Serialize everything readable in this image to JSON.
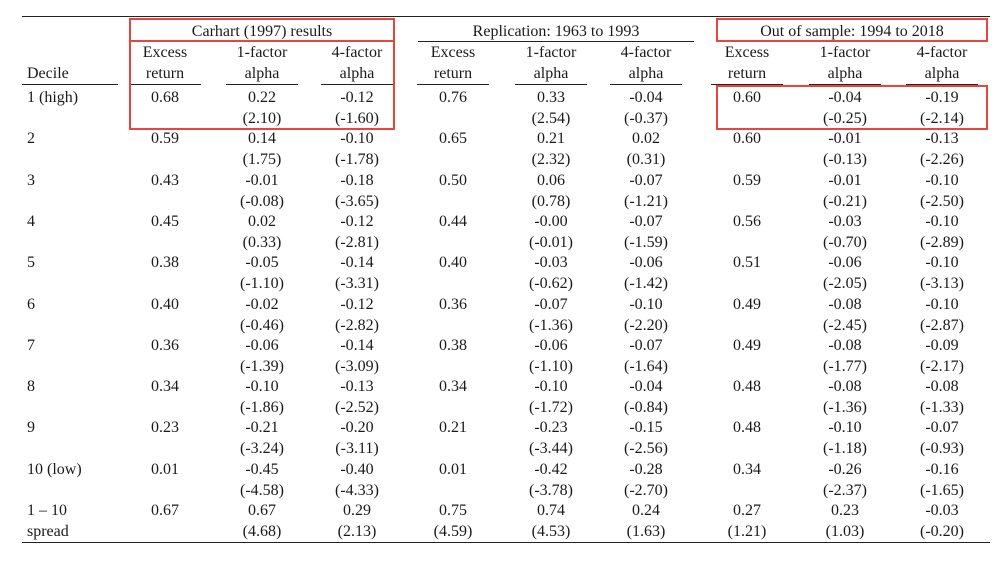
{
  "groups": [
    {
      "title": "Carhart (1997) results"
    },
    {
      "title": "Replication: 1963 to 1993"
    },
    {
      "title": "Out of sample: 1994 to 2018"
    }
  ],
  "decile_header": "Decile",
  "column_headers": [
    {
      "line1": "Excess",
      "line2": "return"
    },
    {
      "line1": "1-factor",
      "line2": "alpha"
    },
    {
      "line1": "4-factor",
      "line2": "alpha"
    }
  ],
  "rows": [
    {
      "label": [
        "1 (high)",
        ""
      ],
      "values": [
        [
          "0.68",
          ""
        ],
        [
          "0.22",
          "(2.10)"
        ],
        [
          "-0.12",
          "(-1.60)"
        ],
        [
          "0.76",
          ""
        ],
        [
          "0.33",
          "(2.54)"
        ],
        [
          "-0.04",
          "(-0.37)"
        ],
        [
          "0.60",
          ""
        ],
        [
          "-0.04",
          "(-0.25)"
        ],
        [
          "-0.19",
          "(-2.14)"
        ]
      ]
    },
    {
      "label": [
        "2",
        ""
      ],
      "values": [
        [
          "0.59",
          ""
        ],
        [
          "0.14",
          "(1.75)"
        ],
        [
          "-0.10",
          "(-1.78)"
        ],
        [
          "0.65",
          ""
        ],
        [
          "0.21",
          "(2.32)"
        ],
        [
          "0.02",
          "(0.31)"
        ],
        [
          "0.60",
          ""
        ],
        [
          "-0.01",
          "(-0.13)"
        ],
        [
          "-0.13",
          "(-2.26)"
        ]
      ]
    },
    {
      "label": [
        "3",
        ""
      ],
      "values": [
        [
          "0.43",
          ""
        ],
        [
          "-0.01",
          "(-0.08)"
        ],
        [
          "-0.18",
          "(-3.65)"
        ],
        [
          "0.50",
          ""
        ],
        [
          "0.06",
          "(0.78)"
        ],
        [
          "-0.07",
          "(-1.21)"
        ],
        [
          "0.59",
          ""
        ],
        [
          "-0.01",
          "(-0.21)"
        ],
        [
          "-0.10",
          "(-2.50)"
        ]
      ]
    },
    {
      "label": [
        "4",
        ""
      ],
      "values": [
        [
          "0.45",
          ""
        ],
        [
          "0.02",
          "(0.33)"
        ],
        [
          "-0.12",
          "(-2.81)"
        ],
        [
          "0.44",
          ""
        ],
        [
          "-0.00",
          "(-0.01)"
        ],
        [
          "-0.07",
          "(-1.59)"
        ],
        [
          "0.56",
          ""
        ],
        [
          "-0.03",
          "(-0.70)"
        ],
        [
          "-0.10",
          "(-2.89)"
        ]
      ]
    },
    {
      "label": [
        "5",
        ""
      ],
      "values": [
        [
          "0.38",
          ""
        ],
        [
          "-0.05",
          "(-1.10)"
        ],
        [
          "-0.14",
          "(-3.31)"
        ],
        [
          "0.40",
          ""
        ],
        [
          "-0.03",
          "(-0.62)"
        ],
        [
          "-0.06",
          "(-1.42)"
        ],
        [
          "0.51",
          ""
        ],
        [
          "-0.06",
          "(-2.05)"
        ],
        [
          "-0.10",
          "(-3.13)"
        ]
      ]
    },
    {
      "label": [
        "6",
        ""
      ],
      "values": [
        [
          "0.40",
          ""
        ],
        [
          "-0.02",
          "(-0.46)"
        ],
        [
          "-0.12",
          "(-2.82)"
        ],
        [
          "0.36",
          ""
        ],
        [
          "-0.07",
          "(-1.36)"
        ],
        [
          "-0.10",
          "(-2.20)"
        ],
        [
          "0.49",
          ""
        ],
        [
          "-0.08",
          "(-2.45)"
        ],
        [
          "-0.10",
          "(-2.87)"
        ]
      ]
    },
    {
      "label": [
        "7",
        ""
      ],
      "values": [
        [
          "0.36",
          ""
        ],
        [
          "-0.06",
          "(-1.39)"
        ],
        [
          "-0.14",
          "(-3.09)"
        ],
        [
          "0.38",
          ""
        ],
        [
          "-0.06",
          "(-1.10)"
        ],
        [
          "-0.07",
          "(-1.64)"
        ],
        [
          "0.49",
          ""
        ],
        [
          "-0.08",
          "(-1.77)"
        ],
        [
          "-0.09",
          "(-2.17)"
        ]
      ]
    },
    {
      "label": [
        "8",
        ""
      ],
      "values": [
        [
          "0.34",
          ""
        ],
        [
          "-0.10",
          "(-1.86)"
        ],
        [
          "-0.13",
          "(-2.52)"
        ],
        [
          "0.34",
          ""
        ],
        [
          "-0.10",
          "(-1.72)"
        ],
        [
          "-0.04",
          "(-0.84)"
        ],
        [
          "0.48",
          ""
        ],
        [
          "-0.08",
          "(-1.36)"
        ],
        [
          "-0.08",
          "(-1.33)"
        ]
      ]
    },
    {
      "label": [
        "9",
        ""
      ],
      "values": [
        [
          "0.23",
          ""
        ],
        [
          "-0.21",
          "(-3.24)"
        ],
        [
          "-0.20",
          "(-3.11)"
        ],
        [
          "0.21",
          ""
        ],
        [
          "-0.23",
          "(-3.44)"
        ],
        [
          "-0.15",
          "(-2.56)"
        ],
        [
          "0.48",
          ""
        ],
        [
          "-0.10",
          "(-1.18)"
        ],
        [
          "-0.07",
          "(-0.93)"
        ]
      ]
    },
    {
      "label": [
        "10 (low)",
        ""
      ],
      "values": [
        [
          "0.01",
          ""
        ],
        [
          "-0.45",
          "(-4.58)"
        ],
        [
          "-0.40",
          "(-4.33)"
        ],
        [
          "0.01",
          ""
        ],
        [
          "-0.42",
          "(-3.78)"
        ],
        [
          "-0.28",
          "(-2.70)"
        ],
        [
          "0.34",
          ""
        ],
        [
          "-0.26",
          "(-2.37)"
        ],
        [
          "-0.16",
          "(-1.65)"
        ]
      ]
    },
    {
      "label": [
        "1 – 10",
        "spread"
      ],
      "values": [
        [
          "0.67",
          ""
        ],
        [
          "0.67",
          "(4.68)"
        ],
        [
          "0.29",
          "(2.13)"
        ],
        [
          "0.75",
          "(4.59)"
        ],
        [
          "0.74",
          "(4.53)"
        ],
        [
          "0.24",
          "(1.63)"
        ],
        [
          "0.27",
          "(1.21)"
        ],
        [
          "0.23",
          "(1.03)"
        ],
        [
          "-0.03",
          "(-0.20)"
        ]
      ]
    }
  ],
  "highlight_color": "#e8453c"
}
